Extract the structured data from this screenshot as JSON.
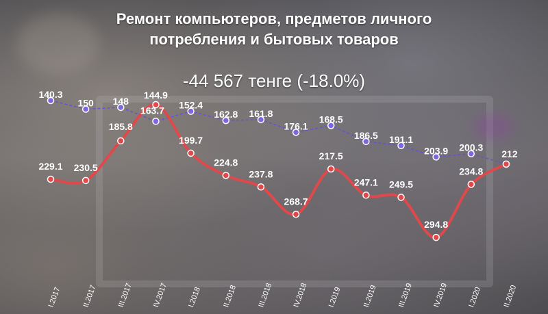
{
  "title_line1": "Ремонт компьютеров, предметов личного",
  "title_line2": "потребления и бытовых товаров",
  "subtitle": "-44 567 тенге (-18.0%)",
  "chart_data": {
    "type": "line",
    "title": "Ремонт компьютеров, предметов личного потребления и бытовых товаров",
    "subtitle": "-44 567 тенге (-18.0%)",
    "categories": [
      "I.2017",
      "II.2017",
      "III.2017",
      "IV.2017",
      "I.2018",
      "II.2018",
      "III.2018",
      "IV.2018",
      "I.2019",
      "II.2019",
      "III.2019",
      "IV.2019",
      "I.2020",
      "II.2020"
    ],
    "series": [
      {
        "values": [
          229.1,
          230.5,
          185.8,
          144.9,
          199.7,
          224.8,
          237.8,
          268.7,
          217.5,
          247.1,
          249.5,
          294.8,
          234.8,
          212
        ],
        "color": "#e0494c",
        "style": "smooth-solid"
      },
      {
        "values": [
          140.3,
          150,
          148,
          163.7,
          152.4,
          162.8,
          161.8,
          176.1,
          168.5,
          186.5,
          191.1,
          203.9,
          200.3,
          212
        ],
        "color": "#6a4fd6",
        "style": "dashed"
      }
    ],
    "labels_red": [
      "229.1",
      "230.5",
      "185.8",
      "144.9",
      "199.7",
      "224.8",
      "237.8",
      "268.7",
      "217.5",
      "247.1",
      "249.5",
      "294.8",
      "234.8",
      ""
    ],
    "labels_blue": [
      "140.3",
      "150",
      "148",
      "163.7",
      "152.4",
      "162.8",
      "161.8",
      "176.1",
      "168.5",
      "186.5",
      "191.1",
      "203.9",
      "200.3",
      "212"
    ],
    "ylim": [
      100,
      320
    ],
    "grid": false,
    "legend": "none"
  }
}
